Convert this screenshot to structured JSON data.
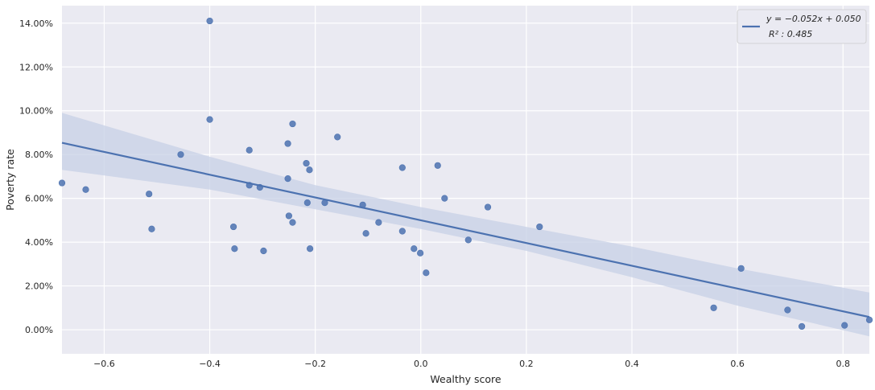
{
  "chart_data": {
    "type": "scatter",
    "title": "",
    "xlabel": "Wealthy score",
    "ylabel": "Poverty rate",
    "xlim": [
      -0.68,
      0.85
    ],
    "ylim": [
      -0.011,
      0.148
    ],
    "x_ticks": [
      -0.6,
      -0.4,
      -0.2,
      0.0,
      0.2,
      0.4,
      0.6,
      0.8
    ],
    "x_tick_labels": [
      "−0.6",
      "−0.4",
      "−0.2",
      "0.0",
      "0.2",
      "0.4",
      "0.6",
      "0.8"
    ],
    "y_ticks": [
      0.0,
      0.02,
      0.04,
      0.06,
      0.08,
      0.1,
      0.12,
      0.14
    ],
    "y_tick_labels": [
      "0.00%",
      "2.00%",
      "4.00%",
      "6.00%",
      "8.00%",
      "10.00%",
      "12.00%",
      "14.00%"
    ],
    "grid": true,
    "legend_position": "top-right",
    "legend": {
      "equation": "y = −0.052x + 0.050",
      "r2": "R² : 0.485"
    },
    "regression": {
      "slope": -0.052,
      "intercept": 0.05
    },
    "confidence_band": {
      "x": [
        -0.68,
        -0.4,
        -0.2,
        0.0,
        0.2,
        0.4,
        0.6,
        0.85
      ],
      "lower": [
        0.073,
        0.064,
        0.055,
        0.046,
        0.036,
        0.024,
        0.011,
        -0.003
      ],
      "upper": [
        0.099,
        0.079,
        0.066,
        0.056,
        0.047,
        0.038,
        0.028,
        0.017
      ]
    },
    "points": [
      {
        "x": -0.68,
        "y": 0.067
      },
      {
        "x": -0.635,
        "y": 0.064
      },
      {
        "x": -0.515,
        "y": 0.062
      },
      {
        "x": -0.51,
        "y": 0.046
      },
      {
        "x": -0.455,
        "y": 0.08
      },
      {
        "x": -0.4,
        "y": 0.141
      },
      {
        "x": -0.4,
        "y": 0.096
      },
      {
        "x": -0.355,
        "y": 0.047
      },
      {
        "x": -0.353,
        "y": 0.037
      },
      {
        "x": -0.325,
        "y": 0.082
      },
      {
        "x": -0.325,
        "y": 0.066
      },
      {
        "x": -0.305,
        "y": 0.065
      },
      {
        "x": -0.298,
        "y": 0.036
      },
      {
        "x": -0.252,
        "y": 0.085
      },
      {
        "x": -0.252,
        "y": 0.069
      },
      {
        "x": -0.25,
        "y": 0.052
      },
      {
        "x": -0.243,
        "y": 0.094
      },
      {
        "x": -0.243,
        "y": 0.049
      },
      {
        "x": -0.217,
        "y": 0.076
      },
      {
        "x": -0.215,
        "y": 0.058
      },
      {
        "x": -0.211,
        "y": 0.073
      },
      {
        "x": -0.21,
        "y": 0.037
      },
      {
        "x": -0.182,
        "y": 0.058
      },
      {
        "x": -0.158,
        "y": 0.088
      },
      {
        "x": -0.11,
        "y": 0.057
      },
      {
        "x": -0.104,
        "y": 0.044
      },
      {
        "x": -0.08,
        "y": 0.049
      },
      {
        "x": -0.035,
        "y": 0.074
      },
      {
        "x": -0.035,
        "y": 0.045
      },
      {
        "x": -0.013,
        "y": 0.037
      },
      {
        "x": -0.001,
        "y": 0.035
      },
      {
        "x": 0.01,
        "y": 0.026
      },
      {
        "x": 0.032,
        "y": 0.075
      },
      {
        "x": 0.045,
        "y": 0.06
      },
      {
        "x": 0.09,
        "y": 0.041
      },
      {
        "x": 0.127,
        "y": 0.056
      },
      {
        "x": 0.225,
        "y": 0.047
      },
      {
        "x": 0.555,
        "y": 0.01
      },
      {
        "x": 0.607,
        "y": 0.028
      },
      {
        "x": 0.695,
        "y": 0.009
      },
      {
        "x": 0.722,
        "y": 0.0015
      },
      {
        "x": 0.803,
        "y": 0.002
      },
      {
        "x": 0.85,
        "y": 0.0045
      }
    ]
  },
  "colors": {
    "plot_background": "#eaeaf2",
    "grid": "#ffffff",
    "points": "#4c72b0",
    "line": "#4c72b0",
    "band": "#c7d0e6"
  }
}
